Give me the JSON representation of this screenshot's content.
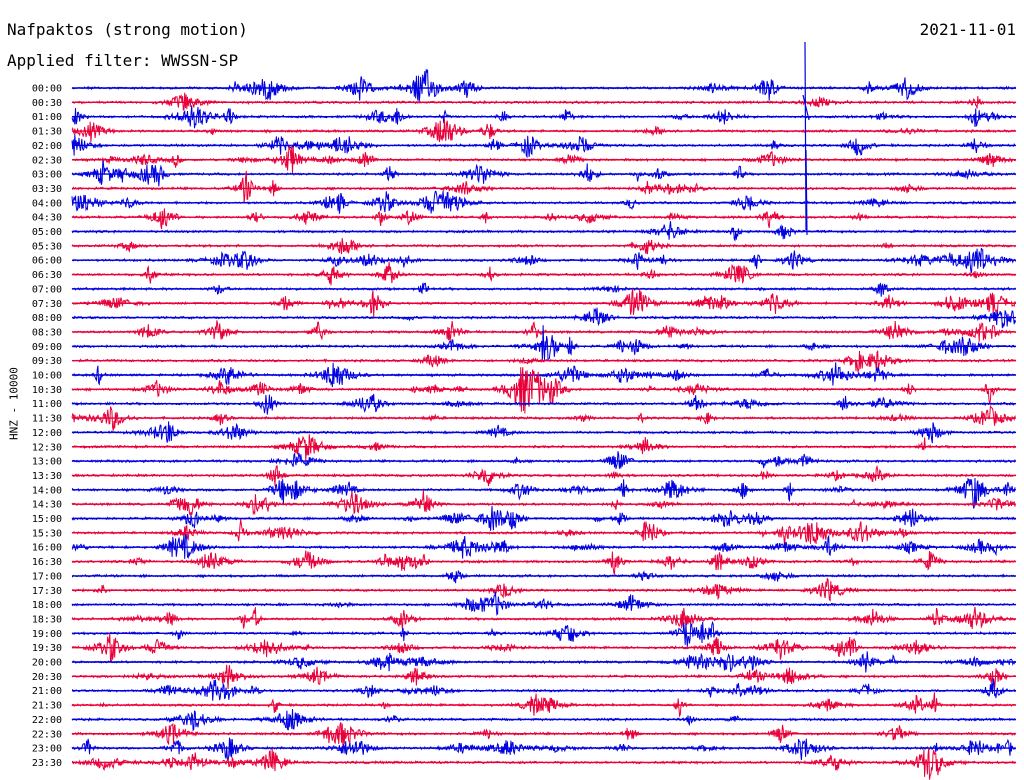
{
  "header": {
    "station": "Nafpaktos (strong motion)",
    "filter": "Applied filter: WWSSN-SP",
    "date": "2021-11-01"
  },
  "colors": {
    "trace_a": "#0000e0",
    "trace_b": "#e8003a"
  },
  "chart_data": {
    "type": "line",
    "title": "Nafpaktos (strong motion)",
    "subtitle": "Applied filter: WWSSN-SP",
    "ylabel": "HNZ - 10000",
    "row_labels": [
      "00:00",
      "00:30",
      "01:00",
      "01:30",
      "02:00",
      "02:30",
      "03:00",
      "03:30",
      "04:00",
      "04:30",
      "05:00",
      "05:30",
      "06:00",
      "06:30",
      "07:00",
      "07:30",
      "08:00",
      "08:30",
      "09:00",
      "09:30",
      "10:00",
      "10:30",
      "11:00",
      "11:30",
      "12:00",
      "12:30",
      "13:00",
      "13:30",
      "14:00",
      "14:30",
      "15:00",
      "15:30",
      "16:00",
      "16:30",
      "17:00",
      "17:30",
      "18:00",
      "18:30",
      "19:00",
      "19:30",
      "20:00",
      "20:30",
      "21:00",
      "21:30",
      "22:00",
      "22:30",
      "23:00",
      "23:30"
    ],
    "series_colors": [
      "#0000e0",
      "#e8003a"
    ],
    "grid": false
  }
}
